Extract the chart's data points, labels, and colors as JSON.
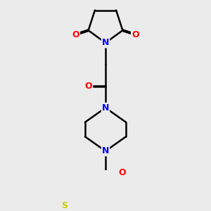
{
  "background_color": "#ebebeb",
  "bond_color": "#000000",
  "bond_width": 1.8,
  "atom_colors": {
    "N": "#0000ff",
    "O": "#ff0000",
    "S": "#cccc00",
    "C": "#000000"
  },
  "font_size_atom": 9,
  "figsize": [
    3.0,
    3.0
  ],
  "dpi": 100
}
